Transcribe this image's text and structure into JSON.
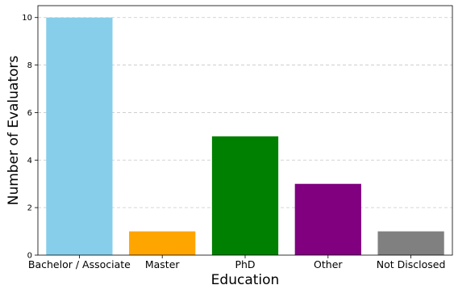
{
  "chart_data": {
    "type": "bar",
    "title": "",
    "xlabel": "Education",
    "ylabel": "Number of Evaluators",
    "categories": [
      "Bachelor / Associate",
      "Master",
      "PhD",
      "Other",
      "Not Disclosed"
    ],
    "values": [
      10,
      1,
      5,
      3,
      1
    ],
    "colors": [
      "#87ceeb",
      "#ffa500",
      "#008000",
      "#800080",
      "#808080"
    ],
    "ylim": [
      0,
      10.5
    ],
    "yticks": [
      0,
      2,
      4,
      6,
      8,
      10
    ],
    "grid": "horizontal-dashed",
    "legend": "none"
  }
}
